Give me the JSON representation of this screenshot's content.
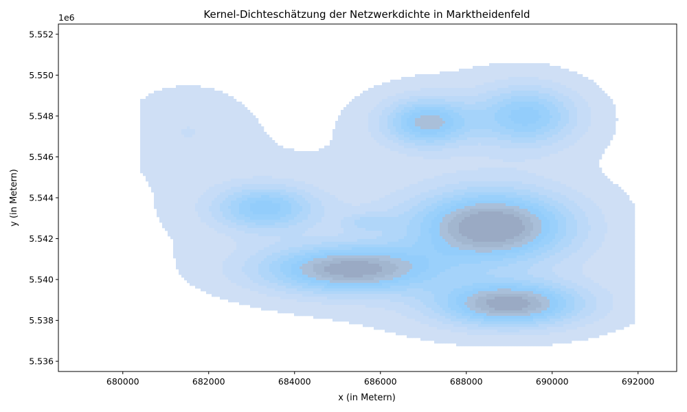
{
  "chart_data": {
    "type": "kde-contour",
    "title": "Kernel-Dichteschätzung der Netzwerkdichte in Marktheidenfeld",
    "xlabel": "x (in Metern)",
    "ylabel": "y (in Metern)",
    "y_offset_label": "1e6",
    "xlim": [
      678500,
      692900
    ],
    "ylim": [
      5535500,
      5552500
    ],
    "x_ticks": [
      680000,
      682000,
      684000,
      686000,
      688000,
      690000,
      692000
    ],
    "x_tick_labels": [
      "680000",
      "682000",
      "684000",
      "686000",
      "688000",
      "690000",
      "692000"
    ],
    "y_ticks": [
      5536000,
      5538000,
      5540000,
      5542000,
      5544000,
      5546000,
      5548000,
      5550000,
      5552000
    ],
    "y_tick_labels": [
      "5.536",
      "5.538",
      "5.540",
      "5.542",
      "5.544",
      "5.546",
      "5.548",
      "5.550",
      "5.552"
    ],
    "grid": false,
    "levels": 10,
    "level_colors": [
      "#cfdff5",
      "#c6dcf7",
      "#bcd9f8",
      "#b0d6f9",
      "#a5d3fa",
      "#9ad0fb",
      "#93cdfb",
      "#a9bfd9",
      "#a2b6cf",
      "#9aaac4"
    ],
    "hotspots": [
      {
        "x": 688600,
        "y": 5542600,
        "peak": 10,
        "spread_x": 1250,
        "spread_y": 1200
      },
      {
        "x": 685300,
        "y": 5540500,
        "peak": 9,
        "spread_x": 1400,
        "spread_y": 800
      },
      {
        "x": 689000,
        "y": 5538800,
        "peak": 9,
        "spread_x": 1150,
        "spread_y": 750
      },
      {
        "x": 687100,
        "y": 5547700,
        "peak": 7,
        "spread_x": 700,
        "spread_y": 800
      },
      {
        "x": 689400,
        "y": 5548000,
        "peak": 6,
        "spread_x": 800,
        "spread_y": 1000
      },
      {
        "x": 683300,
        "y": 5543500,
        "peak": 6,
        "spread_x": 800,
        "spread_y": 750
      },
      {
        "x": 685700,
        "y": 5542800,
        "peak": 2,
        "spread_x": 400,
        "spread_y": 300
      },
      {
        "x": 681500,
        "y": 5547300,
        "peak": 1,
        "spread_x": 800,
        "spread_y": 1200
      }
    ]
  }
}
